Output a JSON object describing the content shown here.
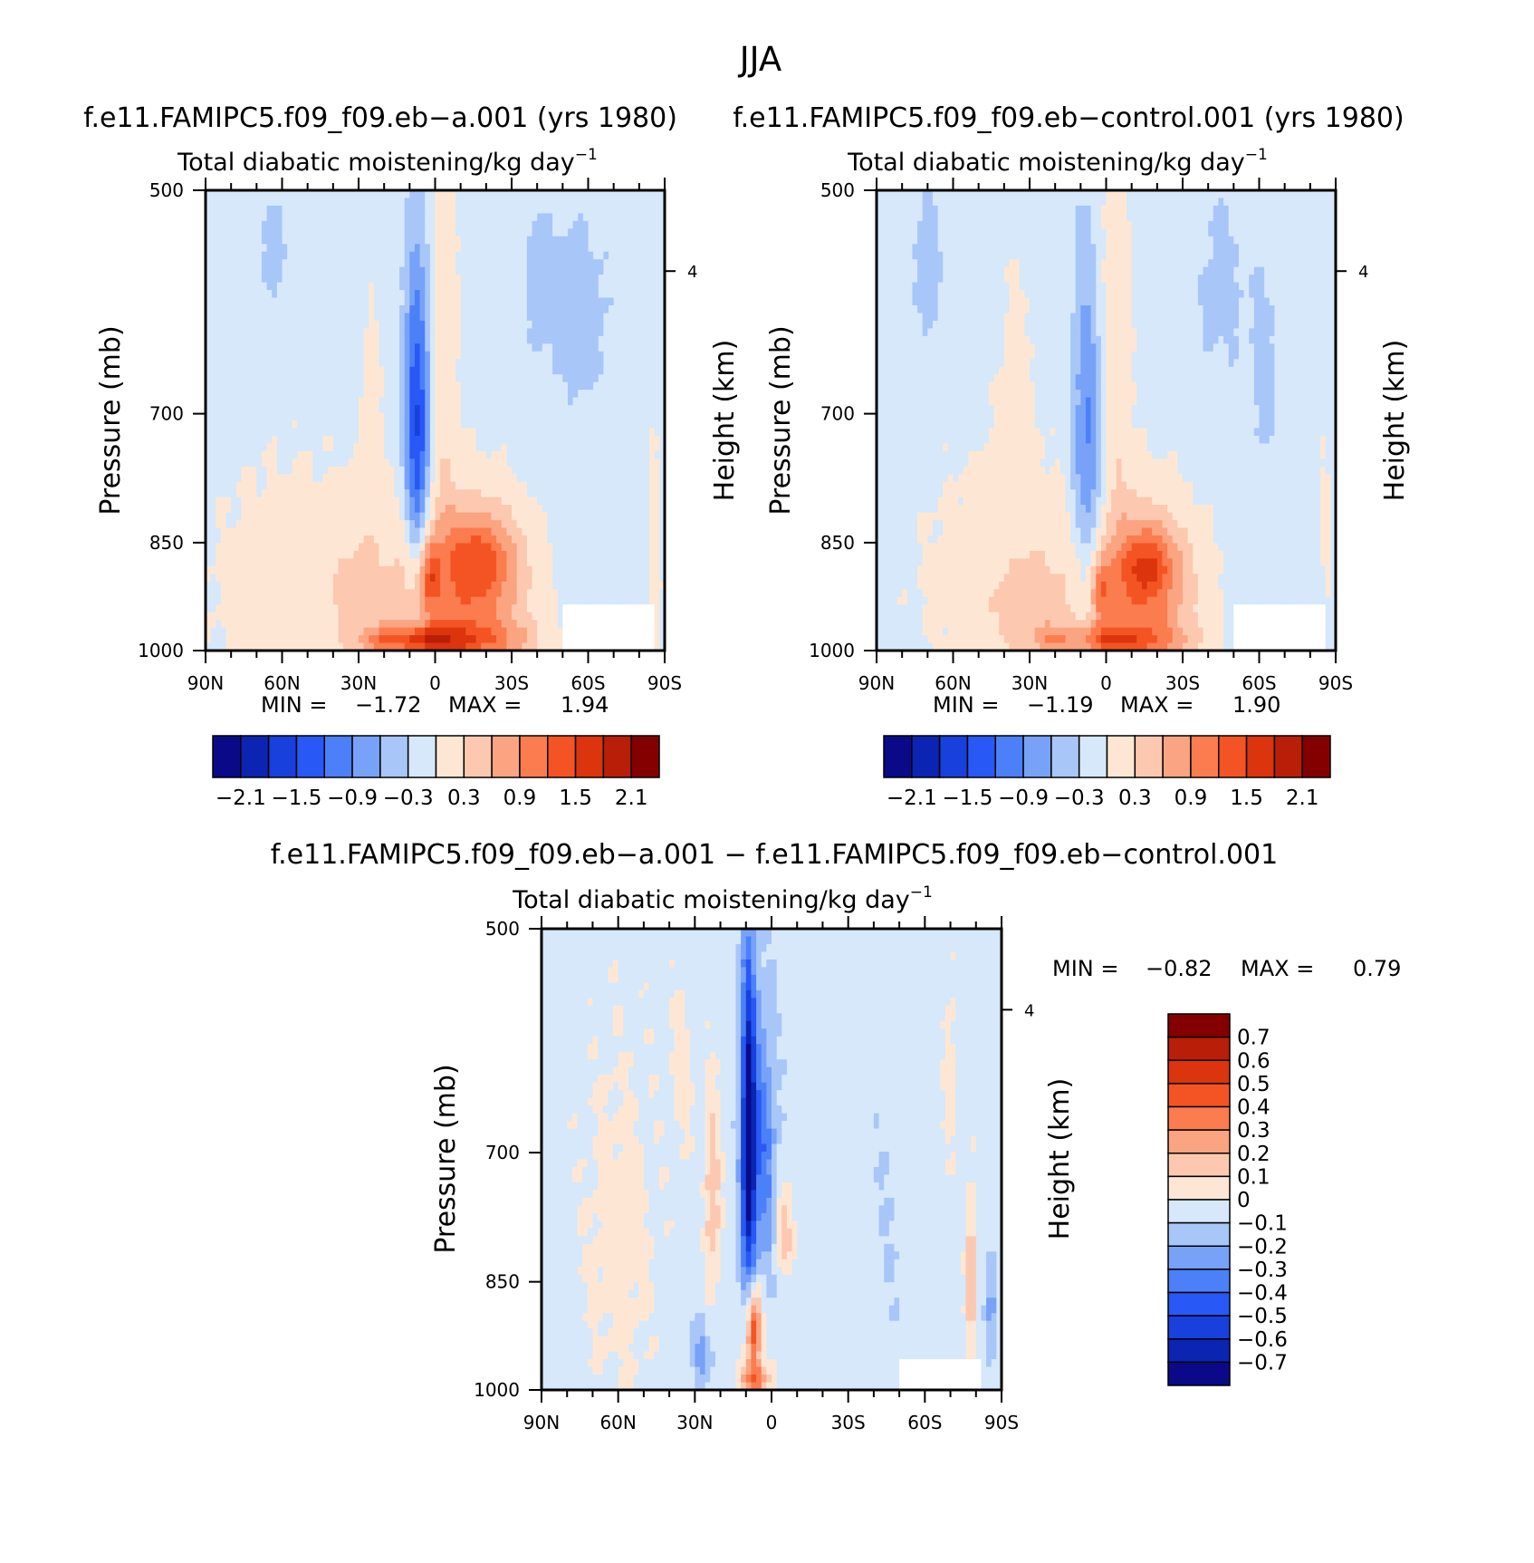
{
  "figure_title": "JJA",
  "colors": {
    "scale17": [
      "#0a0a88",
      "#0c24b2",
      "#1840dc",
      "#2858f5",
      "#4c80f8",
      "#78a2f8",
      "#a8c6f8",
      "#d6e8fa",
      "#fde7d4",
      "#fcc8b0",
      "#fba482",
      "#fb7c4e",
      "#f45424",
      "#dc340c",
      "#b81e08",
      "#840000"
    ],
    "land_mask": "#ffffff"
  },
  "chart_data": [
    {
      "id": "panel-a",
      "type": "heatmap",
      "title": "f.e11.FAMIPC5.f09_f09.eb−a.001 (yrs 1980)",
      "subtitle": "Total diabatic moistening/kg day",
      "subtitle_sup": "−1",
      "xlabel": "",
      "ylabel": "Pressure (mb)",
      "y2label": "Height (km)",
      "xticks": [
        "90N",
        "60N",
        "30N",
        "0",
        "30S",
        "60S",
        "90S"
      ],
      "yticks": [
        "500",
        "700",
        "850",
        "1000"
      ],
      "y2ticks": [
        "4"
      ],
      "min_label": "MIN =",
      "min_value": "−1.72",
      "max_label": "MAX =",
      "max_value": "1.94",
      "levels": [
        -2.1,
        -1.8,
        -1.5,
        -1.2,
        -0.9,
        -0.6,
        -0.3,
        0,
        0.3,
        0.6,
        0.9,
        1.2,
        1.5,
        1.8,
        2.1
      ],
      "colorbar_labels": [
        "−2.1",
        "−1.5",
        "−0.9",
        "−0.3",
        "0.3",
        "0.9",
        "1.5",
        "2.1"
      ],
      "features": [
        {
          "lat": -12,
          "p": 920,
          "w": 25,
          "h": 130,
          "v": 1.1
        },
        {
          "lat": -18,
          "p": 870,
          "w": 14,
          "h": 55,
          "v": 0.7
        },
        {
          "lat": -20,
          "p": 985,
          "w": 22,
          "h": 30,
          "v": 0.6
        },
        {
          "lat": 7,
          "p": 690,
          "w": 5,
          "h": 155,
          "v": -1.25
        },
        {
          "lat": 7,
          "p": 790,
          "w": 4,
          "h": 100,
          "v": -0.45
        },
        {
          "lat": 55,
          "p": 915,
          "w": 40,
          "h": 200,
          "v": 0.3
        },
        {
          "lat": 30,
          "p": 925,
          "w": 12,
          "h": 95,
          "v": 0.35
        },
        {
          "lat": 2,
          "p": 895,
          "w": 4,
          "h": 45,
          "v": 0.75
        },
        {
          "lat": 3,
          "p": 985,
          "w": 14,
          "h": 22,
          "v": 1.1
        },
        {
          "lat": 20,
          "p": 985,
          "w": 10,
          "h": 22,
          "v": 0.7
        },
        {
          "lat": -3,
          "p": 610,
          "w": 6,
          "h": 200,
          "v": 0.4
        },
        {
          "lat": 25,
          "p": 690,
          "w": 4,
          "h": 120,
          "v": 0.25
        },
        {
          "lat": -55,
          "p": 600,
          "w": 15,
          "h": 90,
          "v": -0.3
        },
        {
          "lat": -40,
          "p": 570,
          "w": 4,
          "h": 65,
          "v": -0.2
        },
        {
          "lat": 63,
          "p": 550,
          "w": 5,
          "h": 50,
          "v": -0.3
        },
        {
          "lat": -70,
          "p": 975,
          "w": 10,
          "h": 35,
          "v": 0.35
        },
        {
          "lat": -86,
          "p": 860,
          "w": 3,
          "h": 180,
          "v": 0.3
        }
      ],
      "background": -0.15,
      "noise": 0.05,
      "mask": {
        "lat_from": -50,
        "lat_to": -85,
        "p_from": 935,
        "p_to": 1000
      }
    },
    {
      "id": "panel-b",
      "type": "heatmap",
      "title": "f.e11.FAMIPC5.f09_f09.eb−control.001 (yrs 1980)",
      "subtitle": "Total diabatic moistening/kg day",
      "subtitle_sup": "−1",
      "xlabel": "",
      "ylabel": "Pressure (mb)",
      "y2label": "Height (km)",
      "xticks": [
        "90N",
        "60N",
        "30N",
        "0",
        "30S",
        "60S",
        "90S"
      ],
      "yticks": [
        "500",
        "700",
        "850",
        "1000"
      ],
      "y2ticks": [
        "4"
      ],
      "min_label": "MIN =",
      "min_value": "−1.19",
      "max_label": "MAX =",
      "max_value": "1.90",
      "levels": [
        -2.1,
        -1.8,
        -1.5,
        -1.2,
        -0.9,
        -0.6,
        -0.3,
        0,
        0.3,
        0.6,
        0.9,
        1.2,
        1.5,
        1.8,
        2.1
      ],
      "colorbar_labels": [
        "−2.1",
        "−1.5",
        "−0.9",
        "−0.3",
        "0.3",
        "0.9",
        "1.5",
        "2.1"
      ],
      "features": [
        {
          "lat": -14,
          "p": 915,
          "w": 22,
          "h": 120,
          "v": 1.1
        },
        {
          "lat": -16,
          "p": 880,
          "w": 10,
          "h": 45,
          "v": 0.75
        },
        {
          "lat": -18,
          "p": 985,
          "w": 18,
          "h": 28,
          "v": 0.5
        },
        {
          "lat": 7,
          "p": 740,
          "w": 6,
          "h": 180,
          "v": -0.95
        },
        {
          "lat": 40,
          "p": 905,
          "w": 40,
          "h": 200,
          "v": 0.3
        },
        {
          "lat": 30,
          "p": 950,
          "w": 14,
          "h": 80,
          "v": 0.4
        },
        {
          "lat": 2,
          "p": 915,
          "w": 4,
          "h": 45,
          "v": 0.7
        },
        {
          "lat": 0,
          "p": 985,
          "w": 12,
          "h": 22,
          "v": 0.9
        },
        {
          "lat": 20,
          "p": 985,
          "w": 8,
          "h": 22,
          "v": 0.6
        },
        {
          "lat": -3,
          "p": 610,
          "w": 7,
          "h": 200,
          "v": 0.4
        },
        {
          "lat": 35,
          "p": 660,
          "w": 8,
          "h": 150,
          "v": 0.2
        },
        {
          "lat": 70,
          "p": 560,
          "w": 6,
          "h": 80,
          "v": -0.3
        },
        {
          "lat": -45,
          "p": 580,
          "w": 10,
          "h": 90,
          "v": -0.25
        },
        {
          "lat": -62,
          "p": 660,
          "w": 6,
          "h": 120,
          "v": -0.25
        },
        {
          "lat": -70,
          "p": 975,
          "w": 8,
          "h": 30,
          "v": 0.3
        },
        {
          "lat": -86,
          "p": 830,
          "w": 2,
          "h": 150,
          "v": 0.25
        }
      ],
      "background": -0.15,
      "noise": 0.05,
      "mask": {
        "lat_from": -50,
        "lat_to": -85,
        "p_from": 935,
        "p_to": 1000
      }
    },
    {
      "id": "panel-diff",
      "type": "heatmap",
      "title": "f.e11.FAMIPC5.f09_f09.eb−a.001 − f.e11.FAMIPC5.f09_f09.eb−control.001",
      "subtitle": "Total diabatic moistening/kg day",
      "subtitle_sup": "−1",
      "xlabel": "",
      "ylabel": "Pressure (mb)",
      "y2label": "Height (km)",
      "xticks": [
        "90N",
        "60N",
        "30N",
        "0",
        "30S",
        "60S",
        "90S"
      ],
      "yticks": [
        "500",
        "700",
        "850",
        "1000"
      ],
      "y2ticks": [
        "4"
      ],
      "min_label": "MIN =",
      "min_value": "−0.82",
      "max_label": "MAX =",
      "max_value": "0.79",
      "levels": [
        -0.7,
        -0.6,
        -0.5,
        -0.4,
        -0.3,
        -0.2,
        -0.1,
        0,
        0.1,
        0.2,
        0.3,
        0.4,
        0.5,
        0.6,
        0.7
      ],
      "colorbar_labels": [
        "0.7",
        "0.6",
        "0.5",
        "0.4",
        "0.3",
        "0.2",
        "0.1",
        "0",
        "−0.1",
        "−0.2",
        "−0.3",
        "−0.4",
        "−0.5",
        "−0.6",
        "−0.7"
      ],
      "features": [
        {
          "lat": 9,
          "p": 685,
          "w": 3,
          "h": 175,
          "v": -0.75
        },
        {
          "lat": 3,
          "p": 700,
          "w": 5,
          "h": 140,
          "v": -0.3
        },
        {
          "lat": 7,
          "p": 910,
          "w": 3,
          "h": 60,
          "v": 0.6
        },
        {
          "lat": 7,
          "p": 985,
          "w": 6,
          "h": 25,
          "v": 0.4
        },
        {
          "lat": 23,
          "p": 750,
          "w": 3,
          "h": 110,
          "v": 0.25
        },
        {
          "lat": 35,
          "p": 620,
          "w": 5,
          "h": 80,
          "v": 0.1
        },
        {
          "lat": -5,
          "p": 790,
          "w": 4,
          "h": 50,
          "v": 0.2
        },
        {
          "lat": 27,
          "p": 945,
          "w": 4,
          "h": 40,
          "v": -0.2
        },
        {
          "lat": 60,
          "p": 800,
          "w": 15,
          "h": 220,
          "v": 0.1
        },
        {
          "lat": -70,
          "p": 620,
          "w": 3,
          "h": 90,
          "v": 0.1
        },
        {
          "lat": -78,
          "p": 840,
          "w": 2,
          "h": 110,
          "v": 0.25
        },
        {
          "lat": -45,
          "p": 780,
          "w": 6,
          "h": 160,
          "v": -0.05
        },
        {
          "lat": -86,
          "p": 880,
          "w": 2,
          "h": 60,
          "v": -0.2
        }
      ],
      "background": -0.05,
      "noise": 0.04,
      "mask": {
        "lat_from": -50,
        "lat_to": -82,
        "p_from": 950,
        "p_to": 1000
      }
    }
  ]
}
